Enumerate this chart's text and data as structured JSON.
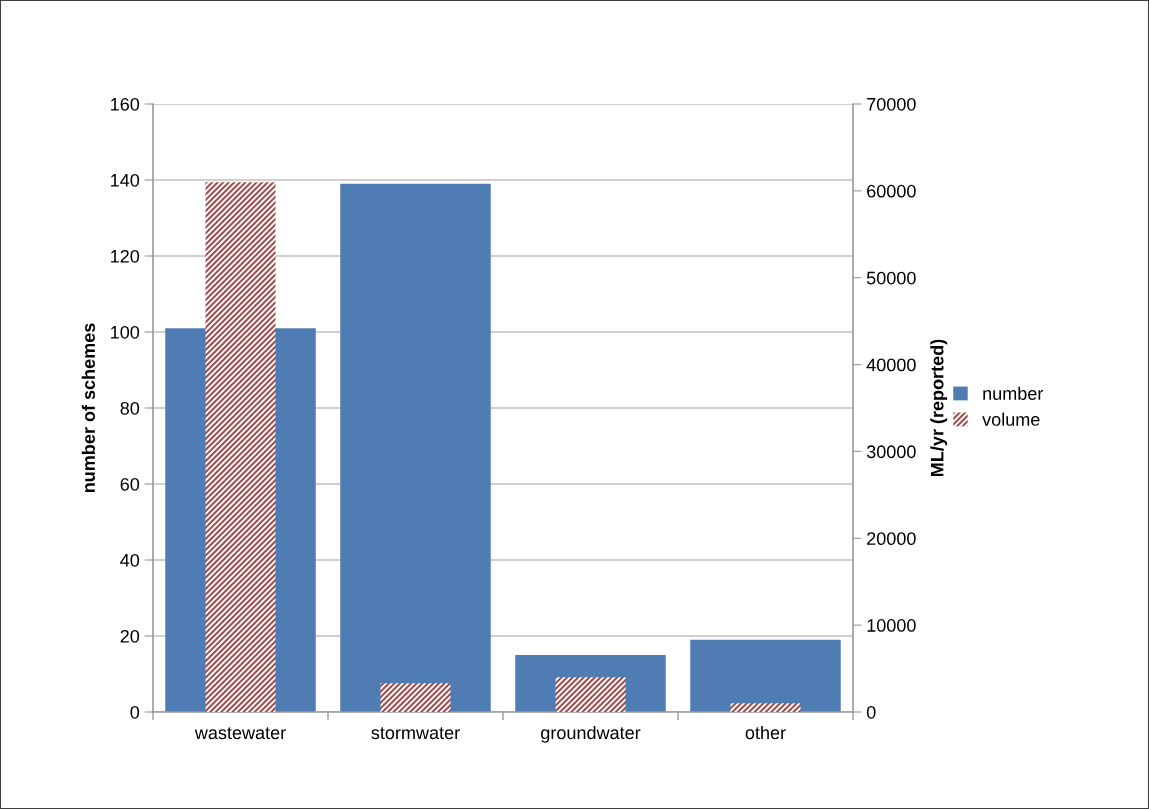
{
  "chart_data": {
    "type": "bar",
    "categories": [
      "wastewater",
      "stormwater",
      "groundwater",
      "other"
    ],
    "series": [
      {
        "name": "number",
        "color": "#4f7cb3",
        "values": [
          101,
          139,
          15,
          19
        ]
      },
      {
        "name": "volume",
        "color": "#a05050",
        "axis": "y2",
        "values": [
          61000,
          3300,
          4000,
          1000
        ]
      }
    ],
    "ylabel": "number of schemes",
    "y2label": "ML/yr (reported)",
    "ylim": [
      0,
      160
    ],
    "yticks": [
      0,
      20,
      40,
      60,
      80,
      100,
      120,
      140,
      160
    ],
    "y2lim": [
      0,
      70000
    ],
    "y2ticks": [
      0,
      10000,
      20000,
      30000,
      40000,
      50000,
      60000,
      70000
    ],
    "grid": "y",
    "legend": "right"
  }
}
